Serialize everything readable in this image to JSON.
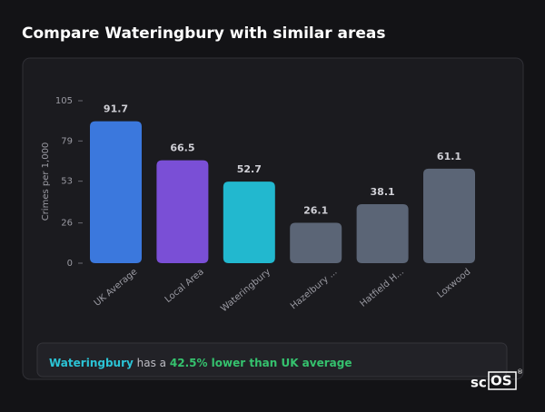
{
  "chart_data": {
    "type": "bar",
    "title": "Compare Wateringbury with similar areas",
    "ylabel": "Crimes per 1,000",
    "categories": [
      "UK Average",
      "Local Area",
      "Wateringbury",
      "Hazelbury ...",
      "Hatfield H...",
      "Loxwood"
    ],
    "values": [
      91.7,
      66.5,
      52.7,
      26.1,
      38.1,
      61.1
    ],
    "colors": [
      "#3b78dd",
      "#7a4fd6",
      "#22b8cf",
      "#5b6576",
      "#5b6576",
      "#5b6576"
    ],
    "ylim": [
      0,
      105
    ],
    "yticks": [
      0,
      26,
      53,
      79,
      105
    ],
    "grid": false
  },
  "summary": {
    "area": "Wateringbury",
    "middle": "has a",
    "highlight": "42.5% lower than UK average"
  },
  "logo": {
    "left": "sc",
    "right": "OS",
    "mark": "®"
  }
}
